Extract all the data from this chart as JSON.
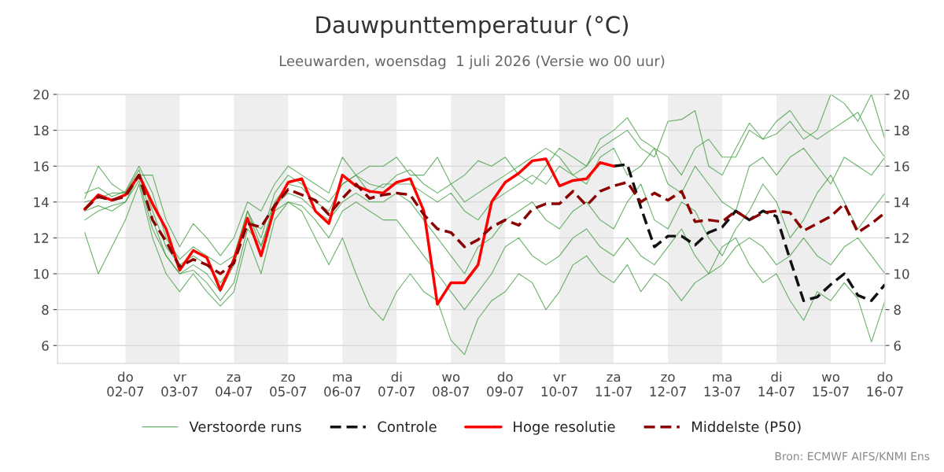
{
  "chart_data": {
    "type": "line",
    "title": "Dauwpunttemperatuur (°C)",
    "subtitle": "Leeuwarden, woensdag  1 juli 2026 (Versie wo 00 uur)",
    "x": [
      "2026-07-01T06:00",
      "2026-07-01T12:00",
      "2026-07-01T18:00",
      "2026-07-02T00:00",
      "2026-07-02T06:00",
      "2026-07-02T12:00",
      "2026-07-02T18:00",
      "2026-07-03T00:00",
      "2026-07-03T06:00",
      "2026-07-03T12:00",
      "2026-07-03T18:00",
      "2026-07-04T00:00",
      "2026-07-04T06:00",
      "2026-07-04T12:00",
      "2026-07-04T18:00",
      "2026-07-05T00:00",
      "2026-07-05T06:00",
      "2026-07-05T12:00",
      "2026-07-05T18:00",
      "2026-07-06T00:00",
      "2026-07-06T06:00",
      "2026-07-06T12:00",
      "2026-07-06T18:00",
      "2026-07-07T00:00",
      "2026-07-07T06:00",
      "2026-07-07T12:00",
      "2026-07-07T18:00",
      "2026-07-08T00:00",
      "2026-07-08T06:00",
      "2026-07-08T12:00",
      "2026-07-08T18:00",
      "2026-07-09T00:00",
      "2026-07-09T06:00",
      "2026-07-09T12:00",
      "2026-07-09T18:00",
      "2026-07-10T00:00",
      "2026-07-10T06:00",
      "2026-07-10T12:00",
      "2026-07-10T18:00",
      "2026-07-11T00:00",
      "2026-07-11T06:00",
      "2026-07-11T12:00",
      "2026-07-11T18:00",
      "2026-07-12T00:00",
      "2026-07-12T06:00",
      "2026-07-12T12:00",
      "2026-07-12T18:00",
      "2026-07-13T00:00",
      "2026-07-13T06:00",
      "2026-07-13T12:00",
      "2026-07-13T18:00",
      "2026-07-14T00:00",
      "2026-07-14T06:00",
      "2026-07-14T12:00",
      "2026-07-14T18:00",
      "2026-07-15T00:00",
      "2026-07-15T06:00",
      "2026-07-15T12:00",
      "2026-07-15T18:00",
      "2026-07-16T00:00"
    ],
    "series": [
      {
        "name": "Verstoorde runs",
        "color": "#3a9a3a",
        "values": [
          14.5,
          14.8,
          14.3,
          14.6,
          16.0,
          14.5,
          12.0,
          10.8,
          11.5,
          11.0,
          10.5,
          11.0,
          13.5,
          12.0,
          14.5,
          15.5,
          15.0,
          14.5,
          14.0,
          15.0,
          15.5,
          15.0,
          14.8,
          15.5,
          15.8,
          15.0,
          14.5,
          15.0,
          14.0,
          14.5,
          15.0,
          15.5,
          16.0,
          16.5,
          17.0,
          16.5,
          15.5,
          16.0,
          17.0,
          17.5,
          18.0,
          17.0,
          16.5,
          18.5,
          18.6,
          19.1,
          16.0,
          15.5,
          17.0,
          18.4,
          17.5,
          18.5,
          19.1,
          18.0,
          17.5,
          18.0,
          18.5,
          19.0,
          17.5,
          16.5
        ]
      },
      {
        "color": "#3a9a3a",
        "values": [
          12.3,
          10.0,
          11.5,
          13.0,
          15.0,
          12.0,
          10.0,
          9.0,
          10.0,
          9.0,
          8.2,
          9.0,
          12.0,
          10.0,
          13.0,
          14.0,
          13.5,
          12.0,
          10.5,
          12.0,
          10.0,
          8.2,
          7.4,
          9.0,
          10.0,
          9.0,
          8.5,
          6.3,
          5.5,
          7.5,
          8.5,
          9.0,
          10.0,
          9.5,
          8.0,
          9.0,
          10.5,
          11.0,
          10.0,
          9.5,
          10.5,
          9.0,
          10.0,
          9.5,
          8.5,
          9.5,
          10.0,
          11.5,
          12.0,
          10.5,
          9.5,
          10.0,
          8.5,
          7.4,
          9.0,
          8.5,
          9.5,
          8.6,
          6.2,
          8.5
        ]
      },
      {
        "color": "#3a9a3a",
        "values": [
          13.0,
          13.5,
          13.8,
          14.0,
          15.5,
          13.0,
          11.0,
          10.0,
          10.5,
          10.0,
          9.0,
          10.5,
          13.0,
          12.5,
          13.8,
          14.5,
          14.2,
          13.5,
          13.0,
          14.0,
          14.5,
          14.0,
          14.0,
          14.5,
          14.0,
          13.0,
          12.0,
          11.0,
          10.0,
          11.5,
          12.0,
          13.0,
          13.5,
          14.0,
          13.0,
          12.5,
          13.5,
          14.0,
          13.0,
          12.5,
          14.0,
          15.0,
          13.0,
          12.5,
          14.0,
          13.5,
          12.0,
          11.0,
          12.5,
          13.5,
          15.0,
          14.0,
          12.0,
          13.0,
          14.5,
          15.5,
          14.0,
          12.5,
          13.5,
          14.5
        ]
      },
      {
        "color": "#3a9a3a",
        "values": [
          14.0,
          14.2,
          14.5,
          14.5,
          15.8,
          13.5,
          11.5,
          10.5,
          11.0,
          10.5,
          9.5,
          10.5,
          13.5,
          11.5,
          14.0,
          15.0,
          14.8,
          14.0,
          13.5,
          15.0,
          15.5,
          14.5,
          15.0,
          15.0,
          15.0,
          14.5,
          14.0,
          14.5,
          13.5,
          13.0,
          14.0,
          14.5,
          15.0,
          15.5,
          15.0,
          16.0,
          15.5,
          15.0,
          16.5,
          17.0,
          15.5,
          16.0,
          17.0,
          15.0,
          14.5,
          16.0,
          15.0,
          14.0,
          13.5,
          16.0,
          16.5,
          15.5,
          16.5,
          17.0,
          16.0,
          15.0,
          16.5,
          16.0,
          15.5,
          16.5
        ]
      },
      {
        "color": "#3a9a3a",
        "values": [
          13.5,
          13.8,
          13.5,
          14.0,
          15.2,
          12.5,
          11.0,
          10.0,
          10.2,
          9.5,
          8.5,
          9.5,
          12.5,
          11.6,
          13.5,
          14.0,
          13.8,
          13.0,
          12.0,
          13.5,
          14.0,
          13.5,
          13.0,
          13.0,
          12.0,
          11.0,
          10.0,
          9.0,
          8.0,
          9.0,
          10.0,
          11.5,
          12.0,
          11.0,
          10.5,
          11.0,
          12.0,
          12.5,
          11.5,
          11.0,
          12.0,
          11.0,
          10.5,
          11.5,
          12.5,
          11.0,
          10.0,
          10.5,
          11.5,
          12.0,
          11.5,
          10.5,
          11.0,
          12.0,
          11.0,
          10.5,
          11.5,
          12.0,
          11.0,
          10.0
        ]
      },
      {
        "color": "#3a9a3a",
        "values": [
          14.2,
          16.0,
          15.0,
          14.5,
          15.5,
          15.5,
          13.0,
          11.5,
          12.8,
          12.0,
          11.0,
          12.0,
          14.0,
          13.5,
          15.0,
          16.0,
          15.5,
          15.0,
          14.5,
          16.5,
          15.5,
          16.0,
          16.0,
          16.5,
          15.5,
          15.5,
          16.5,
          15.0,
          15.5,
          16.3,
          16.0,
          16.5,
          15.5,
          15.0,
          16.0,
          17.0,
          16.5,
          16.0,
          17.5,
          18.0,
          18.7,
          17.5,
          17.0,
          16.5,
          15.5,
          17.0,
          17.5,
          16.5,
          16.5,
          18.0,
          17.5,
          17.8,
          18.5,
          17.5,
          18.0,
          20.0,
          19.5,
          18.5,
          20.0,
          17.5
        ]
      },
      {
        "name": "Controle",
        "color": "#111111",
        "line_style": "dashed",
        "x": [
          "2026-07-11T00:00",
          "2026-07-11T06:00",
          "2026-07-11T12:00",
          "2026-07-11T18:00",
          "2026-07-12T00:00",
          "2026-07-12T06:00",
          "2026-07-12T12:00",
          "2026-07-12T18:00",
          "2026-07-13T00:00",
          "2026-07-13T06:00",
          "2026-07-13T12:00",
          "2026-07-13T18:00",
          "2026-07-14T00:00",
          "2026-07-14T06:00",
          "2026-07-14T12:00",
          "2026-07-14T18:00",
          "2026-07-15T00:00",
          "2026-07-15T06:00",
          "2026-07-15T12:00",
          "2026-07-15T18:00",
          "2026-07-16T00:00"
        ],
        "values": [
          16.0,
          16.1,
          13.7,
          11.5,
          12.1,
          12.1,
          11.6,
          12.3,
          12.6,
          13.5,
          13.0,
          13.5,
          13.2,
          10.8,
          8.5,
          8.7,
          9.4,
          10.0,
          8.8,
          8.5,
          9.4
        ]
      },
      {
        "name": "Hoge resolutie",
        "color": "#ff0000",
        "x": [
          "2026-07-01T06:00",
          "2026-07-01T12:00",
          "2026-07-01T18:00",
          "2026-07-02T00:00",
          "2026-07-02T06:00",
          "2026-07-02T12:00",
          "2026-07-02T18:00",
          "2026-07-03T00:00",
          "2026-07-03T06:00",
          "2026-07-03T12:00",
          "2026-07-03T18:00",
          "2026-07-04T00:00",
          "2026-07-04T06:00",
          "2026-07-04T12:00",
          "2026-07-04T18:00",
          "2026-07-05T00:00",
          "2026-07-05T06:00",
          "2026-07-05T12:00",
          "2026-07-05T18:00",
          "2026-07-06T00:00",
          "2026-07-06T06:00",
          "2026-07-06T12:00",
          "2026-07-06T18:00",
          "2026-07-07T00:00",
          "2026-07-07T06:00",
          "2026-07-07T12:00",
          "2026-07-07T18:00",
          "2026-07-08T00:00",
          "2026-07-08T06:00",
          "2026-07-08T12:00",
          "2026-07-08T18:00",
          "2026-07-09T00:00",
          "2026-07-09T06:00",
          "2026-07-09T12:00",
          "2026-07-09T18:00",
          "2026-07-10T00:00",
          "2026-07-10T06:00",
          "2026-07-10T12:00",
          "2026-07-10T18:00",
          "2026-07-11T00:00"
        ],
        "values": [
          13.6,
          14.4,
          14.1,
          14.4,
          15.5,
          13.9,
          12.5,
          10.2,
          11.3,
          10.9,
          9.1,
          10.8,
          13.1,
          11.0,
          13.7,
          15.1,
          15.3,
          13.5,
          12.8,
          15.5,
          14.9,
          14.6,
          14.5,
          15.1,
          15.3,
          13.5,
          8.3,
          9.5,
          9.5,
          10.5,
          14.0,
          15.1,
          15.6,
          16.3,
          16.4,
          14.9,
          15.2,
          15.3,
          16.2,
          16.0
        ]
      },
      {
        "name": "Middelste (P50)",
        "color": "#8b0000",
        "line_style": "dashed",
        "values": [
          13.6,
          14.3,
          14.1,
          14.3,
          15.5,
          13.0,
          11.8,
          10.4,
          10.8,
          10.5,
          10.0,
          10.6,
          12.8,
          12.6,
          13.8,
          14.7,
          14.4,
          14.1,
          13.3,
          14.2,
          15.0,
          14.2,
          14.4,
          14.5,
          14.4,
          13.3,
          12.5,
          12.3,
          11.5,
          11.9,
          12.6,
          13.0,
          12.7,
          13.6,
          13.9,
          13.9,
          14.6,
          13.8,
          14.6,
          14.9,
          15.1,
          14.0,
          14.5,
          14.1,
          14.6,
          12.9,
          13.0,
          12.9,
          13.5,
          13.0,
          13.4,
          13.5,
          13.4,
          12.4,
          12.8,
          13.2,
          13.9,
          12.3,
          12.8,
          13.4
        ]
      }
    ],
    "xlim": [
      "2026-06-30T18:00",
      "2026-07-16T00:00"
    ],
    "xticks": [
      {
        "value": "2026-07-02",
        "label": "do\n02-07"
      },
      {
        "value": "2026-07-03",
        "label": "vr\n03-07"
      },
      {
        "value": "2026-07-04",
        "label": "za\n04-07"
      },
      {
        "value": "2026-07-05",
        "label": "zo\n05-07"
      },
      {
        "value": "2026-07-06",
        "label": "ma\n06-07"
      },
      {
        "value": "2026-07-07",
        "label": "di\n07-07"
      },
      {
        "value": "2026-07-08",
        "label": "wo\n08-07"
      },
      {
        "value": "2026-07-09",
        "label": "do\n09-07"
      },
      {
        "value": "2026-07-10",
        "label": "vr\n10-07"
      },
      {
        "value": "2026-07-11",
        "label": "za\n11-07"
      },
      {
        "value": "2026-07-12",
        "label": "zo\n12-07"
      },
      {
        "value": "2026-07-13",
        "label": "ma\n13-07"
      },
      {
        "value": "2026-07-14",
        "label": "di\n14-07"
      },
      {
        "value": "2026-07-15",
        "label": "wo\n15-07"
      },
      {
        "value": "2026-07-16",
        "label": "do\n16-07"
      }
    ],
    "ylim": [
      5,
      20
    ],
    "yticks": [
      6,
      8,
      10,
      12,
      14,
      16,
      18,
      20
    ],
    "y2lim": [
      5,
      20
    ],
    "y2ticks": [
      6,
      8,
      10,
      12,
      14,
      16,
      18,
      20
    ],
    "bands": [
      {
        "axis": "x",
        "from": "2026-07-02",
        "to": "2026-07-03",
        "color": "#eeeeee"
      },
      {
        "axis": "x",
        "from": "2026-07-04",
        "to": "2026-07-05",
        "color": "#eeeeee"
      },
      {
        "axis": "x",
        "from": "2026-07-06",
        "to": "2026-07-07",
        "color": "#eeeeee"
      },
      {
        "axis": "x",
        "from": "2026-07-08",
        "to": "2026-07-09",
        "color": "#eeeeee"
      },
      {
        "axis": "x",
        "from": "2026-07-10",
        "to": "2026-07-11",
        "color": "#eeeeee"
      },
      {
        "axis": "x",
        "from": "2026-07-12",
        "to": "2026-07-13",
        "color": "#eeeeee"
      },
      {
        "axis": "x",
        "from": "2026-07-14",
        "to": "2026-07-15",
        "color": "#eeeeee"
      }
    ],
    "annotations": [
      "Bron: ECMWF AIFS/KNMI Ens"
    ],
    "grid": "y",
    "legend": "bottom",
    "marker": "none"
  }
}
